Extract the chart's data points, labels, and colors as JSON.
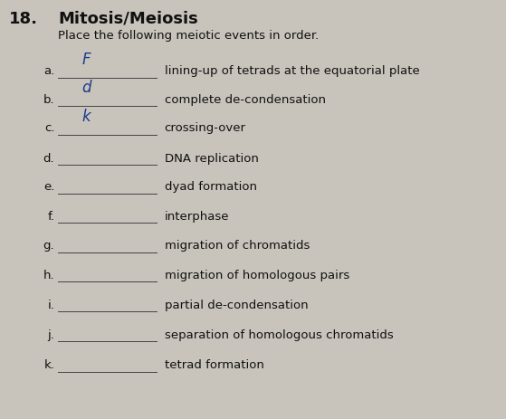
{
  "question_number": "18.",
  "title": "Mitosis/Meiosis",
  "subtitle": "Place the following meiotic events in order.",
  "background_color": "#c8c3bb",
  "items": [
    {
      "letter": "a.",
      "handwritten": "F",
      "text": "lining-up of tetrads at the equatorial plate"
    },
    {
      "letter": "b.",
      "handwritten": "d",
      "text": "complete de-condensation"
    },
    {
      "letter": "c.",
      "handwritten": "k",
      "text": "crossing-over"
    },
    {
      "letter": "d.",
      "handwritten": "",
      "text": "DNA replication"
    },
    {
      "letter": "e.",
      "handwritten": "",
      "text": "dyad formation"
    },
    {
      "letter": "f.",
      "handwritten": "",
      "text": "interphase"
    },
    {
      "letter": "g.",
      "handwritten": "",
      "text": "migration of chromatids"
    },
    {
      "letter": "h.",
      "handwritten": "",
      "text": "migration of homologous pairs"
    },
    {
      "letter": "i.",
      "handwritten": "",
      "text": "partial de-condensation"
    },
    {
      "letter": "j.",
      "handwritten": "",
      "text": "separation of homologous chromatids"
    },
    {
      "letter": "k.",
      "handwritten": "",
      "text": "tetrad formation"
    }
  ],
  "title_fontsize": 13,
  "subtitle_fontsize": 9.5,
  "letter_fontsize": 9.5,
  "text_fontsize": 9.5,
  "handwritten_fontsize": 12,
  "title_color": "#111111",
  "text_color": "#111111",
  "handwritten_color": "#1a3a8a",
  "line_color": "#444444",
  "line_linewidth": 0.7
}
